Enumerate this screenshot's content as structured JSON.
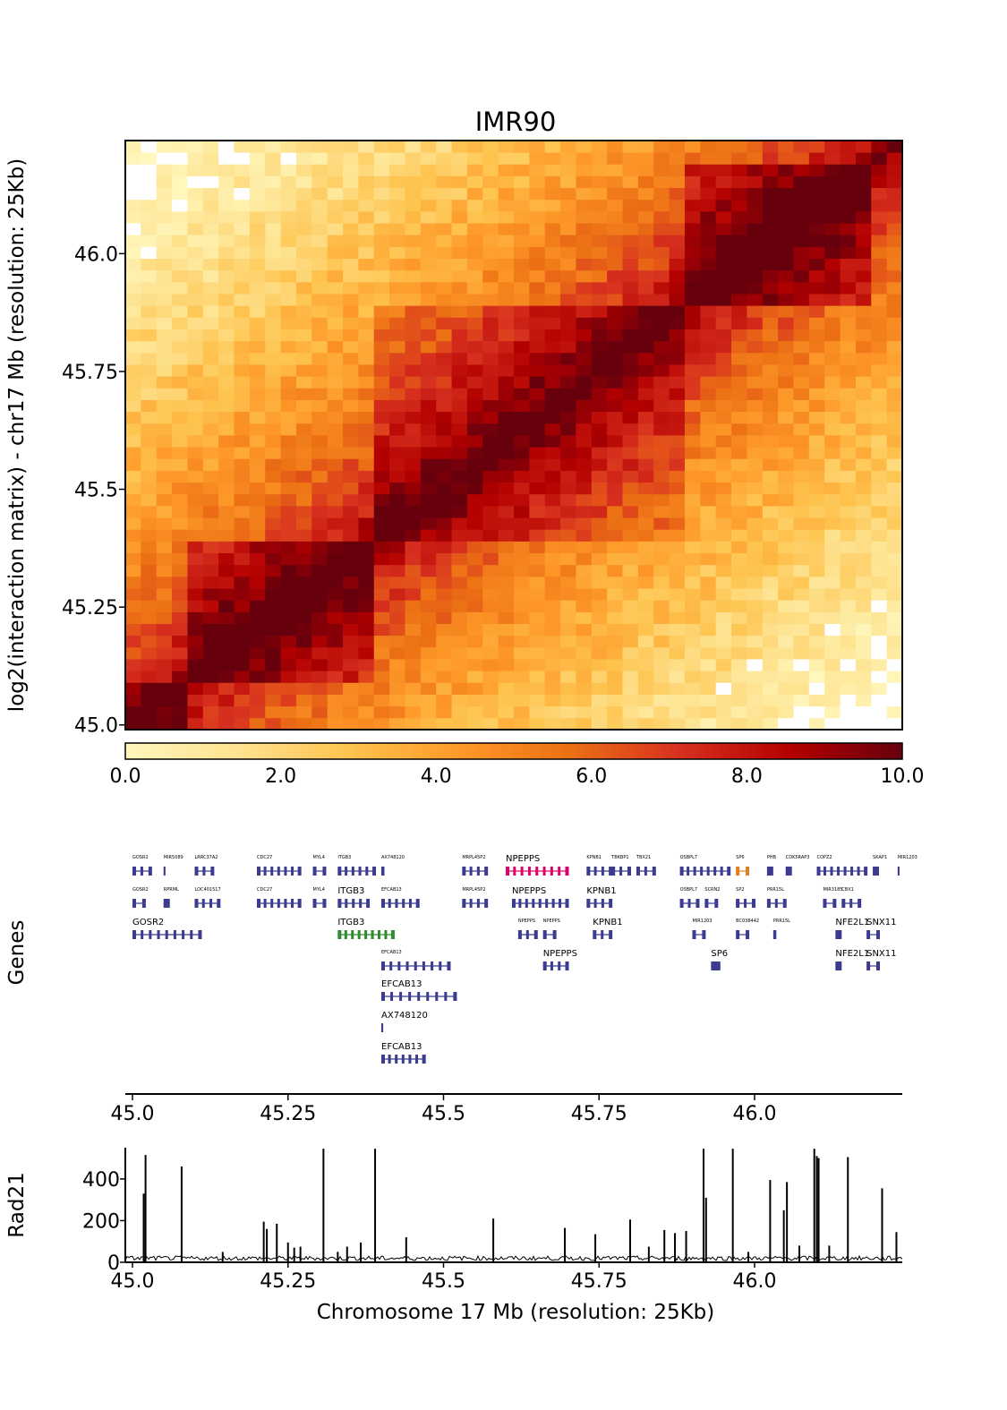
{
  "chart_data": [
    {
      "type": "heatmap",
      "title": "IMR90",
      "ylabel": "log2(interaction matrix) - chr17 Mb (resolution: 25Kb)",
      "axis_range_mb": [
        44.99,
        46.24
      ],
      "yticks": [
        {
          "value": 45.0,
          "label": "45.0"
        },
        {
          "value": 45.25,
          "label": "45.25"
        },
        {
          "value": 45.5,
          "label": "45.5"
        },
        {
          "value": 45.75,
          "label": "45.75"
        },
        {
          "value": 46.0,
          "label": "46.0"
        }
      ],
      "bins": 50,
      "colorbar": {
        "range": [
          0,
          10
        ],
        "ticks": [
          "0.0",
          "2.0",
          "4.0",
          "6.0",
          "8.0",
          "10.0"
        ],
        "colors": [
          "#fff7bc",
          "#fee391",
          "#fec44f",
          "#fe9929",
          "#ec7014",
          "#d7301f",
          "#b30000",
          "#67000d"
        ]
      },
      "domains": [
        {
          "start": 45.0,
          "end": 45.1,
          "strength": 1.0
        },
        {
          "start": 45.1,
          "end": 45.38,
          "strength": 1.2
        },
        {
          "start": 45.38,
          "end": 45.88,
          "strength": 0.9
        },
        {
          "start": 45.88,
          "end": 46.2,
          "strength": 1.3
        }
      ]
    },
    {
      "type": "gene-track",
      "ylabel": "Genes",
      "xticks": [
        "45.0",
        "45.25",
        "45.5",
        "45.75",
        "46.0"
      ],
      "genes": [
        {
          "name": "GOSR2",
          "row": 0,
          "start": 45.0,
          "end": 45.03,
          "label_size": "s"
        },
        {
          "name": "MIR5089",
          "row": 0,
          "start": 45.05,
          "end": 45.053,
          "label_size": "s"
        },
        {
          "name": "LRRC37A2",
          "row": 0,
          "start": 45.1,
          "end": 45.13,
          "label_size": "s"
        },
        {
          "name": "CDC27",
          "row": 0,
          "start": 45.2,
          "end": 45.27,
          "label_size": "s"
        },
        {
          "name": "MYL4",
          "row": 0,
          "start": 45.29,
          "end": 45.31,
          "label_size": "s"
        },
        {
          "name": "ITGB3",
          "row": 0,
          "start": 45.33,
          "end": 45.39,
          "label_size": "s"
        },
        {
          "name": "AX748120",
          "row": 0,
          "start": 45.4,
          "end": 45.405,
          "label_size": "s"
        },
        {
          "name": "MRPL45P2",
          "row": 0,
          "start": 45.53,
          "end": 45.57,
          "label_size": "s"
        },
        {
          "name": "NPEPPS",
          "row": 0,
          "start": 45.6,
          "end": 45.7,
          "label_size": "m",
          "color": "#e0006a"
        },
        {
          "name": "KPNB1",
          "row": 0,
          "start": 45.73,
          "end": 45.77,
          "label_size": "s"
        },
        {
          "name": "TBKBP1",
          "row": 0,
          "start": 45.77,
          "end": 45.8,
          "label_size": "s"
        },
        {
          "name": "TBX21",
          "row": 0,
          "start": 45.81,
          "end": 45.84,
          "label_size": "s"
        },
        {
          "name": "OSBPL7",
          "row": 0,
          "start": 45.88,
          "end": 45.96,
          "label_size": "s"
        },
        {
          "name": "SP6",
          "row": 0,
          "start": 45.97,
          "end": 45.99,
          "label_size": "s",
          "color": "#e08020"
        },
        {
          "name": "PHB",
          "row": 0,
          "start": 46.02,
          "end": 46.03,
          "label_size": "s"
        },
        {
          "name": "CDK5RAP3",
          "row": 0,
          "start": 46.05,
          "end": 46.06,
          "label_size": "s"
        },
        {
          "name": "COPZ2",
          "row": 0,
          "start": 46.1,
          "end": 46.18,
          "label_size": "s"
        },
        {
          "name": "SKAP1",
          "row": 0,
          "start": 46.19,
          "end": 46.2,
          "label_size": "s"
        },
        {
          "name": "MIR1203",
          "row": 0,
          "start": 46.23,
          "end": 46.233,
          "label_size": "s"
        },
        {
          "name": "GOSR2",
          "row": 1,
          "start": 45.0,
          "end": 45.02,
          "label_size": "s"
        },
        {
          "name": "RPRML",
          "row": 1,
          "start": 45.05,
          "end": 45.06,
          "label_size": "s"
        },
        {
          "name": "LOC401517",
          "row": 1,
          "start": 45.1,
          "end": 45.14,
          "label_size": "s"
        },
        {
          "name": "CDC27",
          "row": 1,
          "start": 45.2,
          "end": 45.27,
          "label_size": "s"
        },
        {
          "name": "MYL4",
          "row": 1,
          "start": 45.29,
          "end": 45.31,
          "label_size": "s"
        },
        {
          "name": "ITGB3",
          "row": 1,
          "start": 45.33,
          "end": 45.38,
          "label_size": "m"
        },
        {
          "name": "EFCAB13",
          "row": 1,
          "start": 45.4,
          "end": 45.46,
          "label_size": "s"
        },
        {
          "name": "MRPL45P2",
          "row": 1,
          "start": 45.53,
          "end": 45.57,
          "label_size": "s"
        },
        {
          "name": "NPEPPS",
          "row": 1,
          "start": 45.61,
          "end": 45.7,
          "label_size": "m"
        },
        {
          "name": "KPNB1",
          "row": 1,
          "start": 45.73,
          "end": 45.77,
          "label_size": "m"
        },
        {
          "name": "OSBPL7",
          "row": 1,
          "start": 45.88,
          "end": 45.91,
          "label_size": "s"
        },
        {
          "name": "SCRN2",
          "row": 1,
          "start": 45.92,
          "end": 45.94,
          "label_size": "s"
        },
        {
          "name": "SP2",
          "row": 1,
          "start": 45.97,
          "end": 46.0,
          "label_size": "s"
        },
        {
          "name": "PRR15L",
          "row": 1,
          "start": 46.02,
          "end": 46.05,
          "label_size": "s"
        },
        {
          "name": "MIR3185",
          "row": 1,
          "start": 46.11,
          "end": 46.13,
          "label_size": "s"
        },
        {
          "name": "CBX1",
          "row": 1,
          "start": 46.14,
          "end": 46.17,
          "label_size": "s"
        },
        {
          "name": "GOSR2",
          "row": 2,
          "start": 45.0,
          "end": 45.11,
          "label_size": "m"
        },
        {
          "name": "ITGB3",
          "row": 2,
          "start": 45.33,
          "end": 45.42,
          "label_size": "m",
          "color": "#2e8b2e"
        },
        {
          "name": "NPEPPS",
          "row": 2,
          "start": 45.62,
          "end": 45.65,
          "label_size": "s"
        },
        {
          "name": "NPEPPS",
          "row": 2,
          "start": 45.66,
          "end": 45.68,
          "label_size": "s"
        },
        {
          "name": "KPNB1",
          "row": 2,
          "start": 45.74,
          "end": 45.77,
          "label_size": "m"
        },
        {
          "name": "MIR1203",
          "row": 2,
          "start": 45.9,
          "end": 45.92,
          "label_size": "s"
        },
        {
          "name": "BC038442",
          "row": 2,
          "start": 45.97,
          "end": 45.99,
          "label_size": "s"
        },
        {
          "name": "PRR15L",
          "row": 2,
          "start": 46.03,
          "end": 46.035,
          "label_size": "s"
        },
        {
          "name": "NFE2L1",
          "row": 2,
          "start": 46.13,
          "end": 46.14,
          "label_size": "m"
        },
        {
          "name": "SNX11",
          "row": 2,
          "start": 46.18,
          "end": 46.2,
          "label_size": "m"
        },
        {
          "name": "EFCAB13",
          "row": 3,
          "start": 45.4,
          "end": 45.51,
          "label_size": "s"
        },
        {
          "name": "NPEPPS",
          "row": 3,
          "start": 45.66,
          "end": 45.7,
          "label_size": "m"
        },
        {
          "name": "SP6",
          "row": 3,
          "start": 45.93,
          "end": 45.945,
          "label_size": "m"
        },
        {
          "name": "NFE2L1",
          "row": 3,
          "start": 46.13,
          "end": 46.14,
          "label_size": "m"
        },
        {
          "name": "SNX11",
          "row": 3,
          "start": 46.18,
          "end": 46.2,
          "label_size": "m"
        },
        {
          "name": "EFCAB13",
          "row": 4,
          "start": 45.4,
          "end": 45.52,
          "label_size": "m"
        },
        {
          "name": "AX748120",
          "row": 5,
          "start": 45.4,
          "end": 45.403,
          "label_size": "m"
        },
        {
          "name": "EFCAB13",
          "row": 6,
          "start": 45.4,
          "end": 45.47,
          "label_size": "m"
        }
      ]
    },
    {
      "type": "bar",
      "ylabel": "Rad21",
      "xlabel": "Chromosome 17 Mb (resolution: 25Kb)",
      "yticks": [
        "0",
        "200",
        "400"
      ],
      "ylim": [
        0,
        550
      ],
      "xticks": [
        "45.0",
        "45.25",
        "45.5",
        "45.75",
        "46.0"
      ],
      "peaks": [
        {
          "x": 45.018,
          "y": 330
        },
        {
          "x": 45.021,
          "y": 515
        },
        {
          "x": 45.079,
          "y": 460
        },
        {
          "x": 45.145,
          "y": 50
        },
        {
          "x": 45.211,
          "y": 195
        },
        {
          "x": 45.216,
          "y": 160
        },
        {
          "x": 45.232,
          "y": 185
        },
        {
          "x": 45.25,
          "y": 95
        },
        {
          "x": 45.26,
          "y": 70
        },
        {
          "x": 45.27,
          "y": 75
        },
        {
          "x": 45.307,
          "y": 545
        },
        {
          "x": 45.33,
          "y": 50
        },
        {
          "x": 45.345,
          "y": 75
        },
        {
          "x": 45.367,
          "y": 95
        },
        {
          "x": 45.39,
          "y": 545
        },
        {
          "x": 45.44,
          "y": 120
        },
        {
          "x": 45.58,
          "y": 210
        },
        {
          "x": 45.695,
          "y": 165
        },
        {
          "x": 45.744,
          "y": 135
        },
        {
          "x": 45.8,
          "y": 205
        },
        {
          "x": 45.83,
          "y": 75
        },
        {
          "x": 45.855,
          "y": 155
        },
        {
          "x": 45.872,
          "y": 140
        },
        {
          "x": 45.89,
          "y": 150
        },
        {
          "x": 45.918,
          "y": 545
        },
        {
          "x": 45.922,
          "y": 310
        },
        {
          "x": 45.965,
          "y": 545
        },
        {
          "x": 45.99,
          "y": 50
        },
        {
          "x": 46.025,
          "y": 395
        },
        {
          "x": 46.047,
          "y": 250
        },
        {
          "x": 46.052,
          "y": 385
        },
        {
          "x": 46.072,
          "y": 80
        },
        {
          "x": 46.096,
          "y": 545
        },
        {
          "x": 46.1,
          "y": 510
        },
        {
          "x": 46.103,
          "y": 500
        },
        {
          "x": 46.12,
          "y": 80
        },
        {
          "x": 46.15,
          "y": 505
        },
        {
          "x": 46.205,
          "y": 355
        },
        {
          "x": 46.228,
          "y": 145
        }
      ]
    }
  ]
}
